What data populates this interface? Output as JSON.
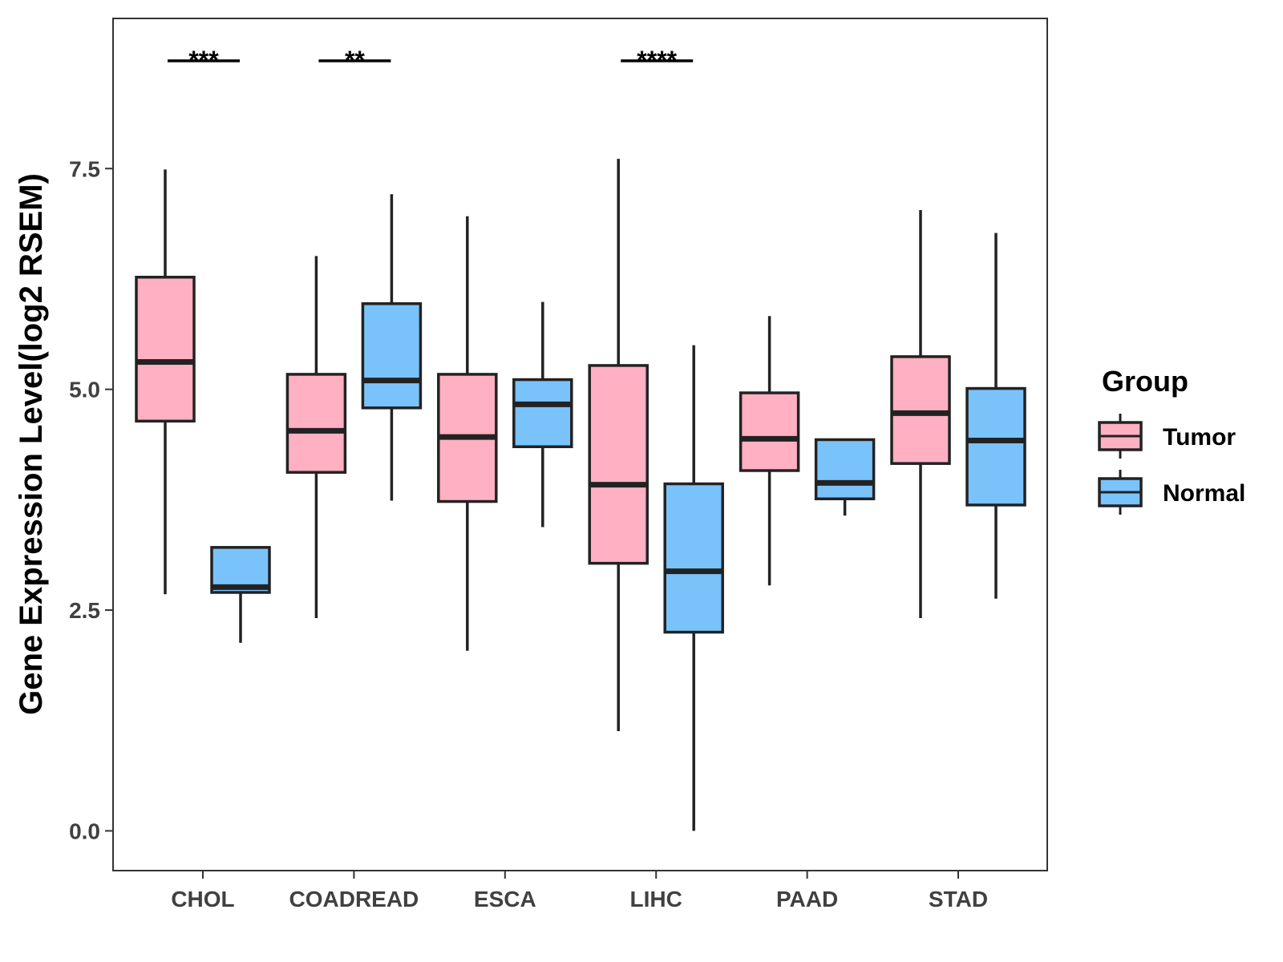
{
  "chart_data": {
    "type": "boxplot",
    "title": "",
    "xlabel": "",
    "ylabel": "Gene Expression Level(log2 RSEM)",
    "ylim": [
      -0.45,
      9.2
    ],
    "yticks": [
      0.0,
      2.5,
      5.0,
      7.5
    ],
    "ytick_labels": [
      "0.0",
      "2.5",
      "5.0",
      "7.5"
    ],
    "grid": false,
    "legend": {
      "title": "Group",
      "position": "right"
    },
    "categories": [
      "CHOL",
      "COADREAD",
      "ESCA",
      "LIHC",
      "PAAD",
      "STAD"
    ],
    "series": [
      {
        "name": "Tumor",
        "color": "#FFB0C2",
        "boxes": [
          {
            "whisker_low": 2.68,
            "q1": 4.64,
            "median": 5.31,
            "q3": 6.27,
            "whisker_high": 7.49
          },
          {
            "whisker_low": 2.41,
            "q1": 4.06,
            "median": 4.53,
            "q3": 5.17,
            "whisker_high": 6.51
          },
          {
            "whisker_low": 2.04,
            "q1": 3.73,
            "median": 4.46,
            "q3": 5.17,
            "whisker_high": 6.96
          },
          {
            "whisker_low": 1.13,
            "q1": 3.03,
            "median": 3.92,
            "q3": 5.27,
            "whisker_high": 7.61
          },
          {
            "whisker_low": 2.78,
            "q1": 4.08,
            "median": 4.44,
            "q3": 4.96,
            "whisker_high": 5.83
          },
          {
            "whisker_low": 2.41,
            "q1": 4.16,
            "median": 4.73,
            "q3": 5.37,
            "whisker_high": 7.03
          }
        ]
      },
      {
        "name": "Normal",
        "color": "#7AC2FA",
        "boxes": [
          {
            "whisker_low": 2.13,
            "q1": 2.7,
            "median": 2.76,
            "q3": 3.21,
            "whisker_high": 3.21
          },
          {
            "whisker_low": 3.74,
            "q1": 4.79,
            "median": 5.1,
            "q3": 5.97,
            "whisker_high": 7.21
          },
          {
            "whisker_low": 3.44,
            "q1": 4.35,
            "median": 4.83,
            "q3": 5.11,
            "whisker_high": 5.99
          },
          {
            "whisker_low": 0.0,
            "q1": 2.25,
            "median": 2.94,
            "q3": 3.93,
            "whisker_high": 5.5
          },
          {
            "whisker_low": 3.57,
            "q1": 3.76,
            "median": 3.94,
            "q3": 4.43,
            "whisker_high": 4.43
          },
          {
            "whisker_low": 2.63,
            "q1": 3.69,
            "median": 4.42,
            "q3": 5.01,
            "whisker_high": 6.77
          }
        ]
      }
    ],
    "annotations": [
      {
        "category": "CHOL",
        "label": "***",
        "y": 8.72
      },
      {
        "category": "COADREAD",
        "label": "**",
        "y": 8.72
      },
      {
        "category": "LIHC",
        "label": "****",
        "y": 8.72
      }
    ]
  }
}
